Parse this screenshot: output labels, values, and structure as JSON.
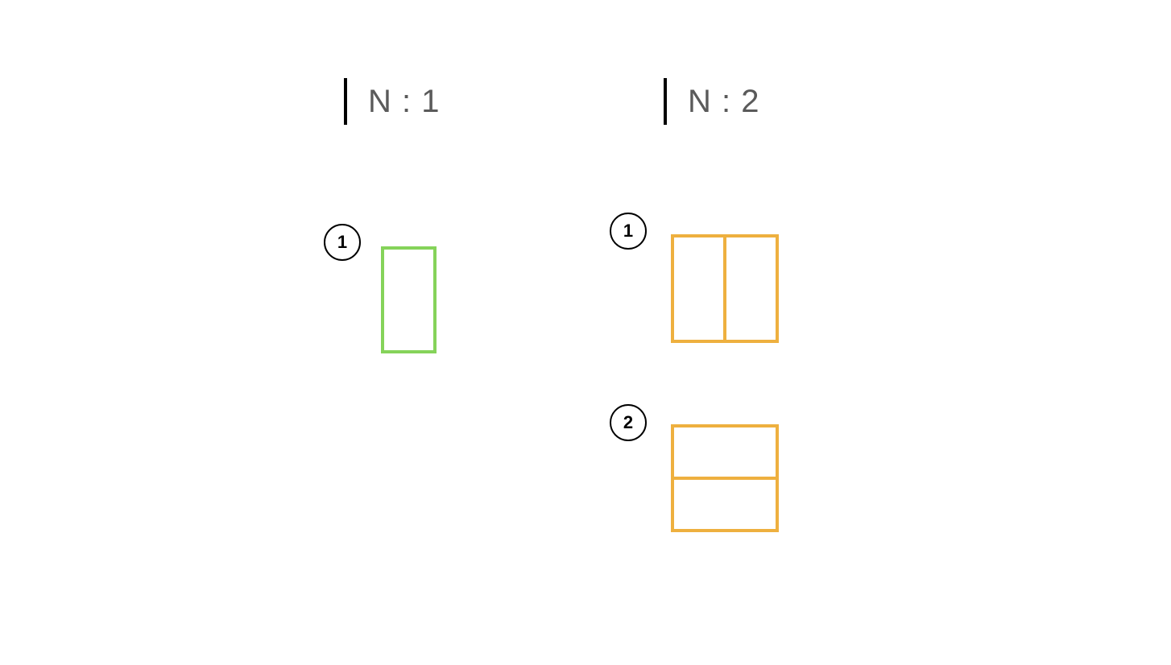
{
  "columns": [
    {
      "heading": "N : 1",
      "layouts": [
        {
          "badge": "1",
          "split": "none",
          "color": "#85d35a"
        }
      ]
    },
    {
      "heading": "N : 2",
      "layouts": [
        {
          "badge": "1",
          "split": "vertical",
          "color": "#eeb03f"
        },
        {
          "badge": "2",
          "split": "horizontal",
          "color": "#eeb03f"
        }
      ]
    }
  ]
}
